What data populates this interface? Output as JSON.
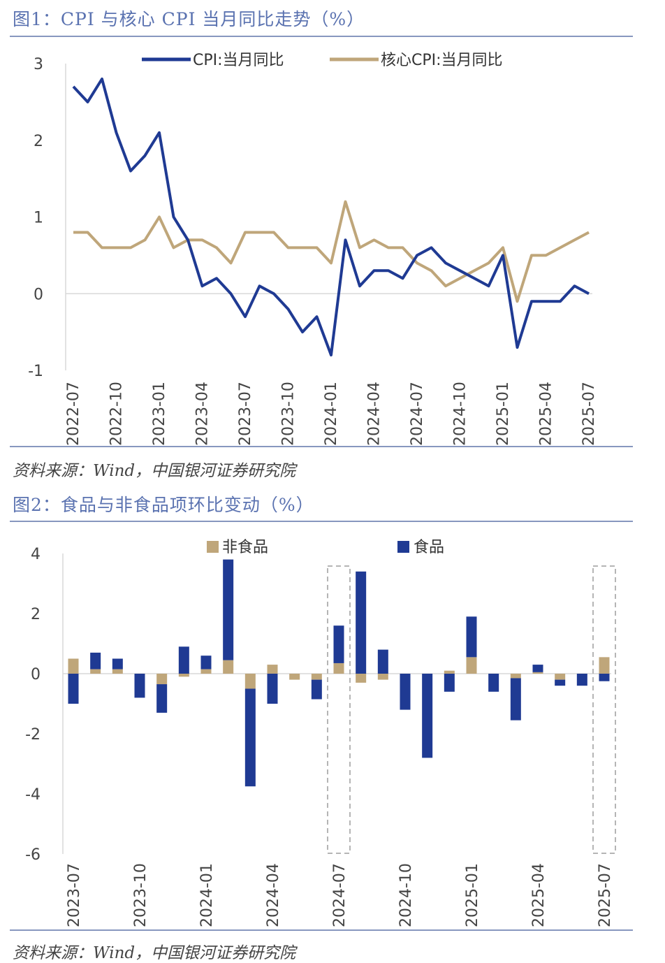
{
  "figure1": {
    "title": "图1：CPI 与核心 CPI 当月同比走势（%）",
    "source": "资料来源：Wind，中国银河证券研究院"
  },
  "figure2": {
    "title": "图2：食品与非食品项环比变动（%）",
    "source": "资料来源：Wind，中国银河证券研究院"
  },
  "colors": {
    "navy": "#1f3a93",
    "tan": "#bfa67a",
    "title_blue": "#5a72b0"
  },
  "chart_data": [
    {
      "type": "line",
      "title": "",
      "x": [
        "2022-07",
        "2022-08",
        "2022-09",
        "2022-10",
        "2022-11",
        "2022-12",
        "2023-01",
        "2023-02",
        "2023-03",
        "2023-04",
        "2023-05",
        "2023-06",
        "2023-07",
        "2023-08",
        "2023-09",
        "2023-10",
        "2023-11",
        "2023-12",
        "2024-01",
        "2024-02",
        "2024-03",
        "2024-04",
        "2024-05",
        "2024-06",
        "2024-07",
        "2024-08",
        "2024-09",
        "2024-10",
        "2024-11",
        "2024-12",
        "2025-01",
        "2025-02",
        "2025-03",
        "2025-04",
        "2025-05",
        "2025-06",
        "2025-07"
      ],
      "tick_labels": [
        "2022-07",
        "2022-10",
        "2023-01",
        "2023-04",
        "2023-07",
        "2023-10",
        "2024-01",
        "2024-04",
        "2024-07",
        "2024-10",
        "2025-01",
        "2025-04",
        "2025-07"
      ],
      "series": [
        {
          "name": "CPI:当月同比",
          "color": "#1f3a93",
          "values": [
            2.7,
            2.5,
            2.8,
            2.1,
            1.6,
            1.8,
            2.1,
            1.0,
            0.7,
            0.1,
            0.2,
            0.0,
            -0.3,
            0.1,
            0.0,
            -0.2,
            -0.5,
            -0.3,
            -0.8,
            0.7,
            0.1,
            0.3,
            0.3,
            0.2,
            0.5,
            0.6,
            0.4,
            0.3,
            0.2,
            0.1,
            0.5,
            -0.7,
            -0.1,
            -0.1,
            -0.1,
            0.1,
            0.0
          ]
        },
        {
          "name": "核心CPI:当月同比",
          "color": "#bfa67a",
          "values": [
            0.8,
            0.8,
            0.6,
            0.6,
            0.6,
            0.7,
            1.0,
            0.6,
            0.7,
            0.7,
            0.6,
            0.4,
            0.8,
            0.8,
            0.8,
            0.6,
            0.6,
            0.6,
            0.4,
            1.2,
            0.6,
            0.7,
            0.6,
            0.6,
            0.4,
            0.3,
            0.1,
            0.2,
            0.3,
            0.4,
            0.6,
            -0.1,
            0.5,
            0.5,
            0.6,
            0.7,
            0.8
          ]
        }
      ],
      "yticks": [
        "3",
        "2",
        "1",
        "0",
        "-1"
      ],
      "ylim": [
        -1,
        3
      ],
      "legend": "top"
    },
    {
      "type": "bar",
      "stacked": true,
      "title": "",
      "categories": [
        "2023-07",
        "2023-08",
        "2023-09",
        "2023-10",
        "2023-11",
        "2023-12",
        "2024-01",
        "2024-02",
        "2024-03",
        "2024-04",
        "2024-05",
        "2024-06",
        "2024-07",
        "2024-08",
        "2024-09",
        "2024-10",
        "2024-11",
        "2024-12",
        "2025-01",
        "2025-02",
        "2025-03",
        "2025-04",
        "2025-05",
        "2025-06",
        "2025-07"
      ],
      "tick_labels": [
        "2023-07",
        "2023-10",
        "2024-01",
        "2024-04",
        "2024-07",
        "2024-10",
        "2025-01",
        "2025-04",
        "2025-07"
      ],
      "series": [
        {
          "name": "非食品",
          "color": "#bfa67a",
          "values": [
            0.5,
            0.15,
            0.15,
            0.0,
            -0.35,
            -0.1,
            0.15,
            0.45,
            -0.5,
            0.3,
            -0.2,
            -0.2,
            0.35,
            -0.3,
            -0.2,
            0.0,
            0.0,
            0.1,
            0.55,
            0.0,
            -0.15,
            0.05,
            -0.2,
            0.0,
            0.55
          ]
        },
        {
          "name": "食品",
          "color": "#1f3a93",
          "values": [
            -1.0,
            0.55,
            0.35,
            -0.8,
            -0.95,
            0.9,
            0.45,
            3.35,
            -3.25,
            -1.0,
            0.0,
            -0.65,
            1.25,
            3.4,
            0.8,
            -1.2,
            -2.8,
            -0.6,
            1.35,
            -0.6,
            -1.4,
            0.25,
            -0.2,
            -0.4,
            -0.25
          ]
        }
      ],
      "highlight": [
        "2024-07",
        "2025-07"
      ],
      "yticks": [
        "4",
        "2",
        "0",
        "-2",
        "-4",
        "-6"
      ],
      "ylim": [
        -6,
        4
      ],
      "legend": "top"
    }
  ]
}
